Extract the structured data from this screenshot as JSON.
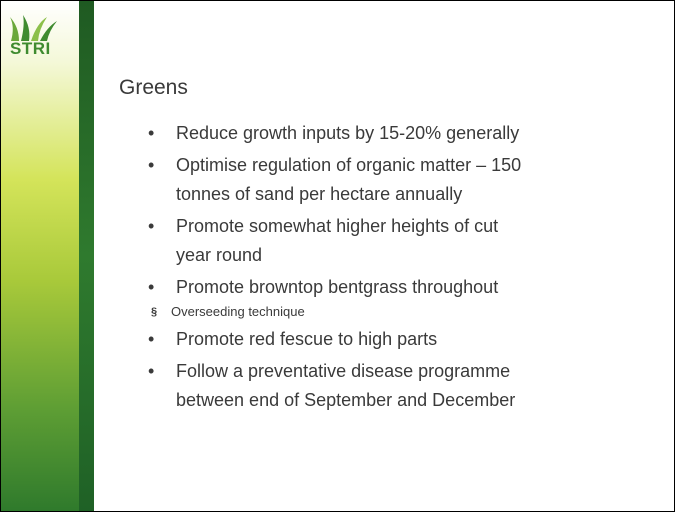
{
  "logo": {
    "text": "STRI"
  },
  "title": "Greens",
  "bullets": [
    {
      "lines": [
        "Reduce growth inputs by 15-20% generally"
      ]
    },
    {
      "lines": [
        "Optimise regulation of organic matter – 150",
        "tonnes of sand per hectare annually"
      ]
    },
    {
      "lines": [
        "Promote somewhat higher heights of cut",
        "year round"
      ]
    },
    {
      "lines": [
        "Promote browntop bentgrass throughout"
      ],
      "sub": [
        "Overseeding technique"
      ]
    },
    {
      "lines": [
        "Promote red fescue to high parts"
      ]
    },
    {
      "lines": [
        "Follow a preventative disease programme",
        "between end of September and December"
      ]
    }
  ]
}
